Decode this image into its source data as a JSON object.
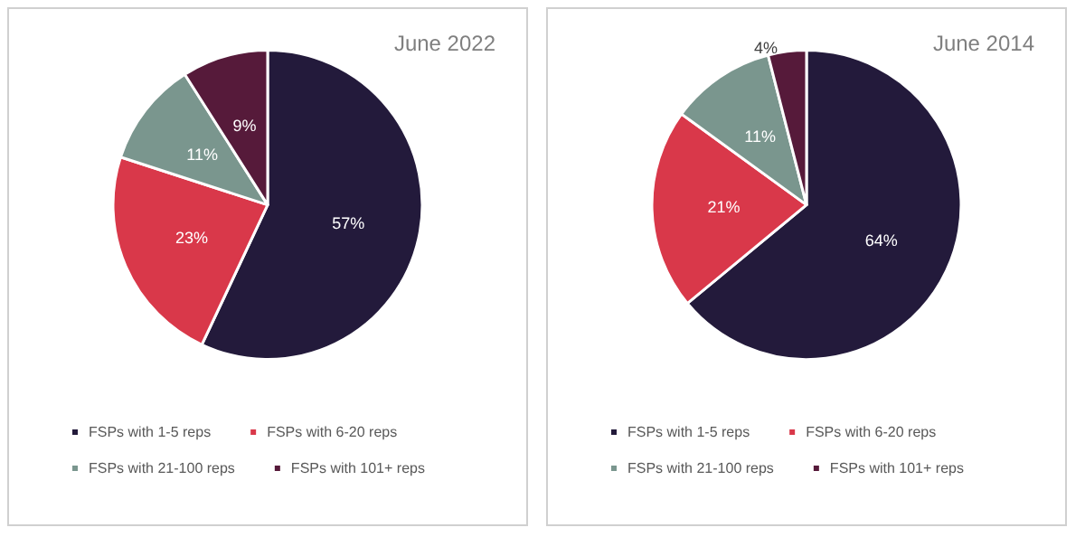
{
  "chart_data": [
    {
      "type": "pie",
      "title": "June 2022",
      "categories": [
        "FSPs with 1-5 reps",
        "FSPs with 6-20 reps",
        "FSPs with 21-100 reps",
        "FSPs with 101+ reps"
      ],
      "values": [
        57,
        23,
        11,
        9
      ],
      "colors": [
        "#231a3b",
        "#d9384a",
        "#7a968e",
        "#561a3a"
      ],
      "value_labels": [
        "57%",
        "23%",
        "11%",
        "9%"
      ],
      "legend": "bottom"
    },
    {
      "type": "pie",
      "title": "June 2014",
      "categories": [
        "FSPs with 1-5 reps",
        "FSPs with 6-20 reps",
        "FSPs with 21-100 reps",
        "FSPs with 101+ reps"
      ],
      "values": [
        64,
        21,
        11,
        4
      ],
      "colors": [
        "#231a3b",
        "#d9384a",
        "#7a968e",
        "#561a3a"
      ],
      "value_labels": [
        "64%",
        "21%",
        "11%",
        "4%"
      ],
      "legend": "bottom"
    }
  ]
}
